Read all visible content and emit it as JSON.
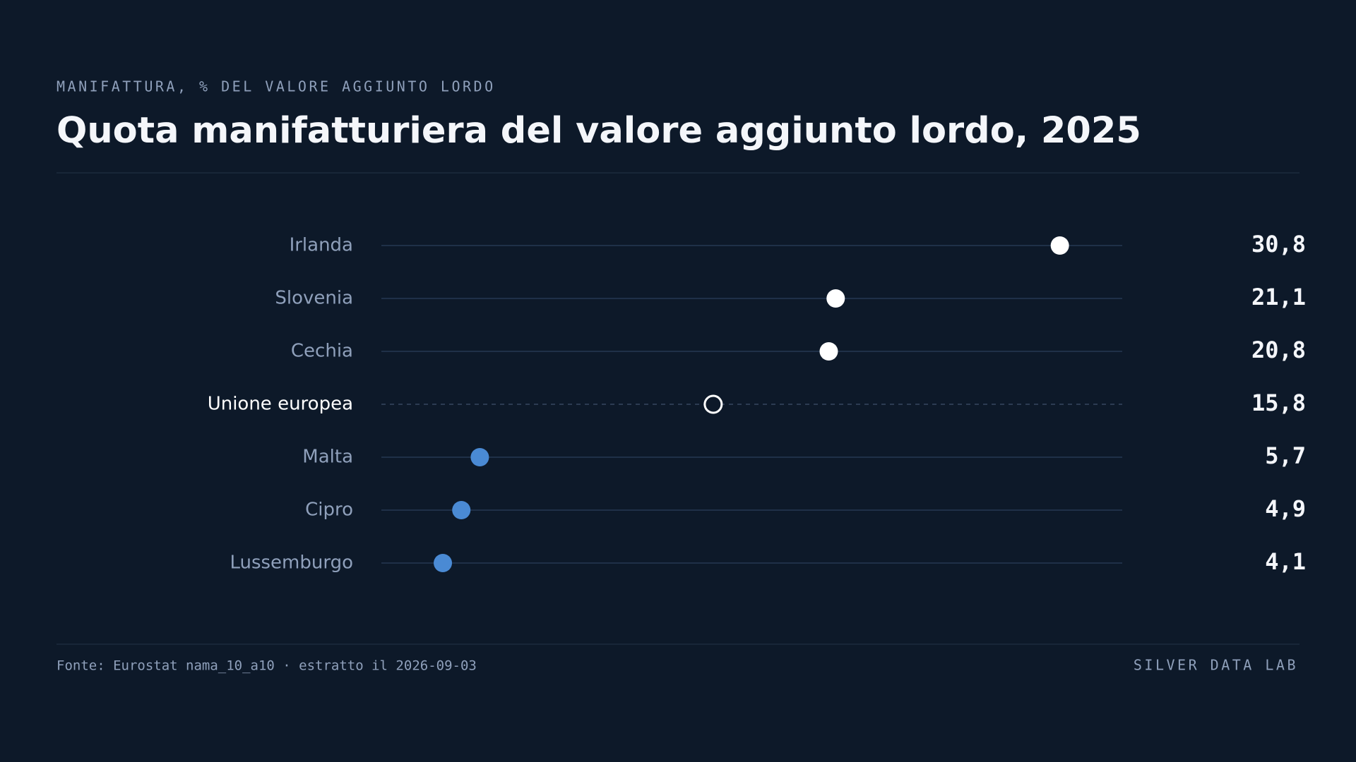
{
  "chart_data": {
    "type": "dot",
    "subtitle": "MANIFATTURA, % DEL VALORE AGGIUNTO LORDO",
    "title": "Quota manifatturiera del valore aggiunto lordo, 2025",
    "categories": [
      "Irlanda",
      "Slovenia",
      "Cechia",
      "Unione europea",
      "Malta",
      "Cipro",
      "Lussemburgo"
    ],
    "values": [
      30.8,
      21.1,
      20.8,
      15.8,
      5.7,
      4.9,
      4.1
    ],
    "value_labels": [
      "30,8",
      "21,1",
      "20,8",
      "15,8",
      "5,7",
      "4,9",
      "4,1"
    ],
    "colors": [
      "#ffffff",
      "#ffffff",
      "#ffffff",
      "#ffffff",
      "#4a8ad4",
      "#4a8ad4",
      "#4a8ad4"
    ],
    "reference": 3,
    "xlim": [
      1.44,
      33.5
    ],
    "source": "Fonte: Eurostat nama_10_a10 · estratto il 2026-09-03",
    "credit": "SILVER DATA LAB"
  }
}
